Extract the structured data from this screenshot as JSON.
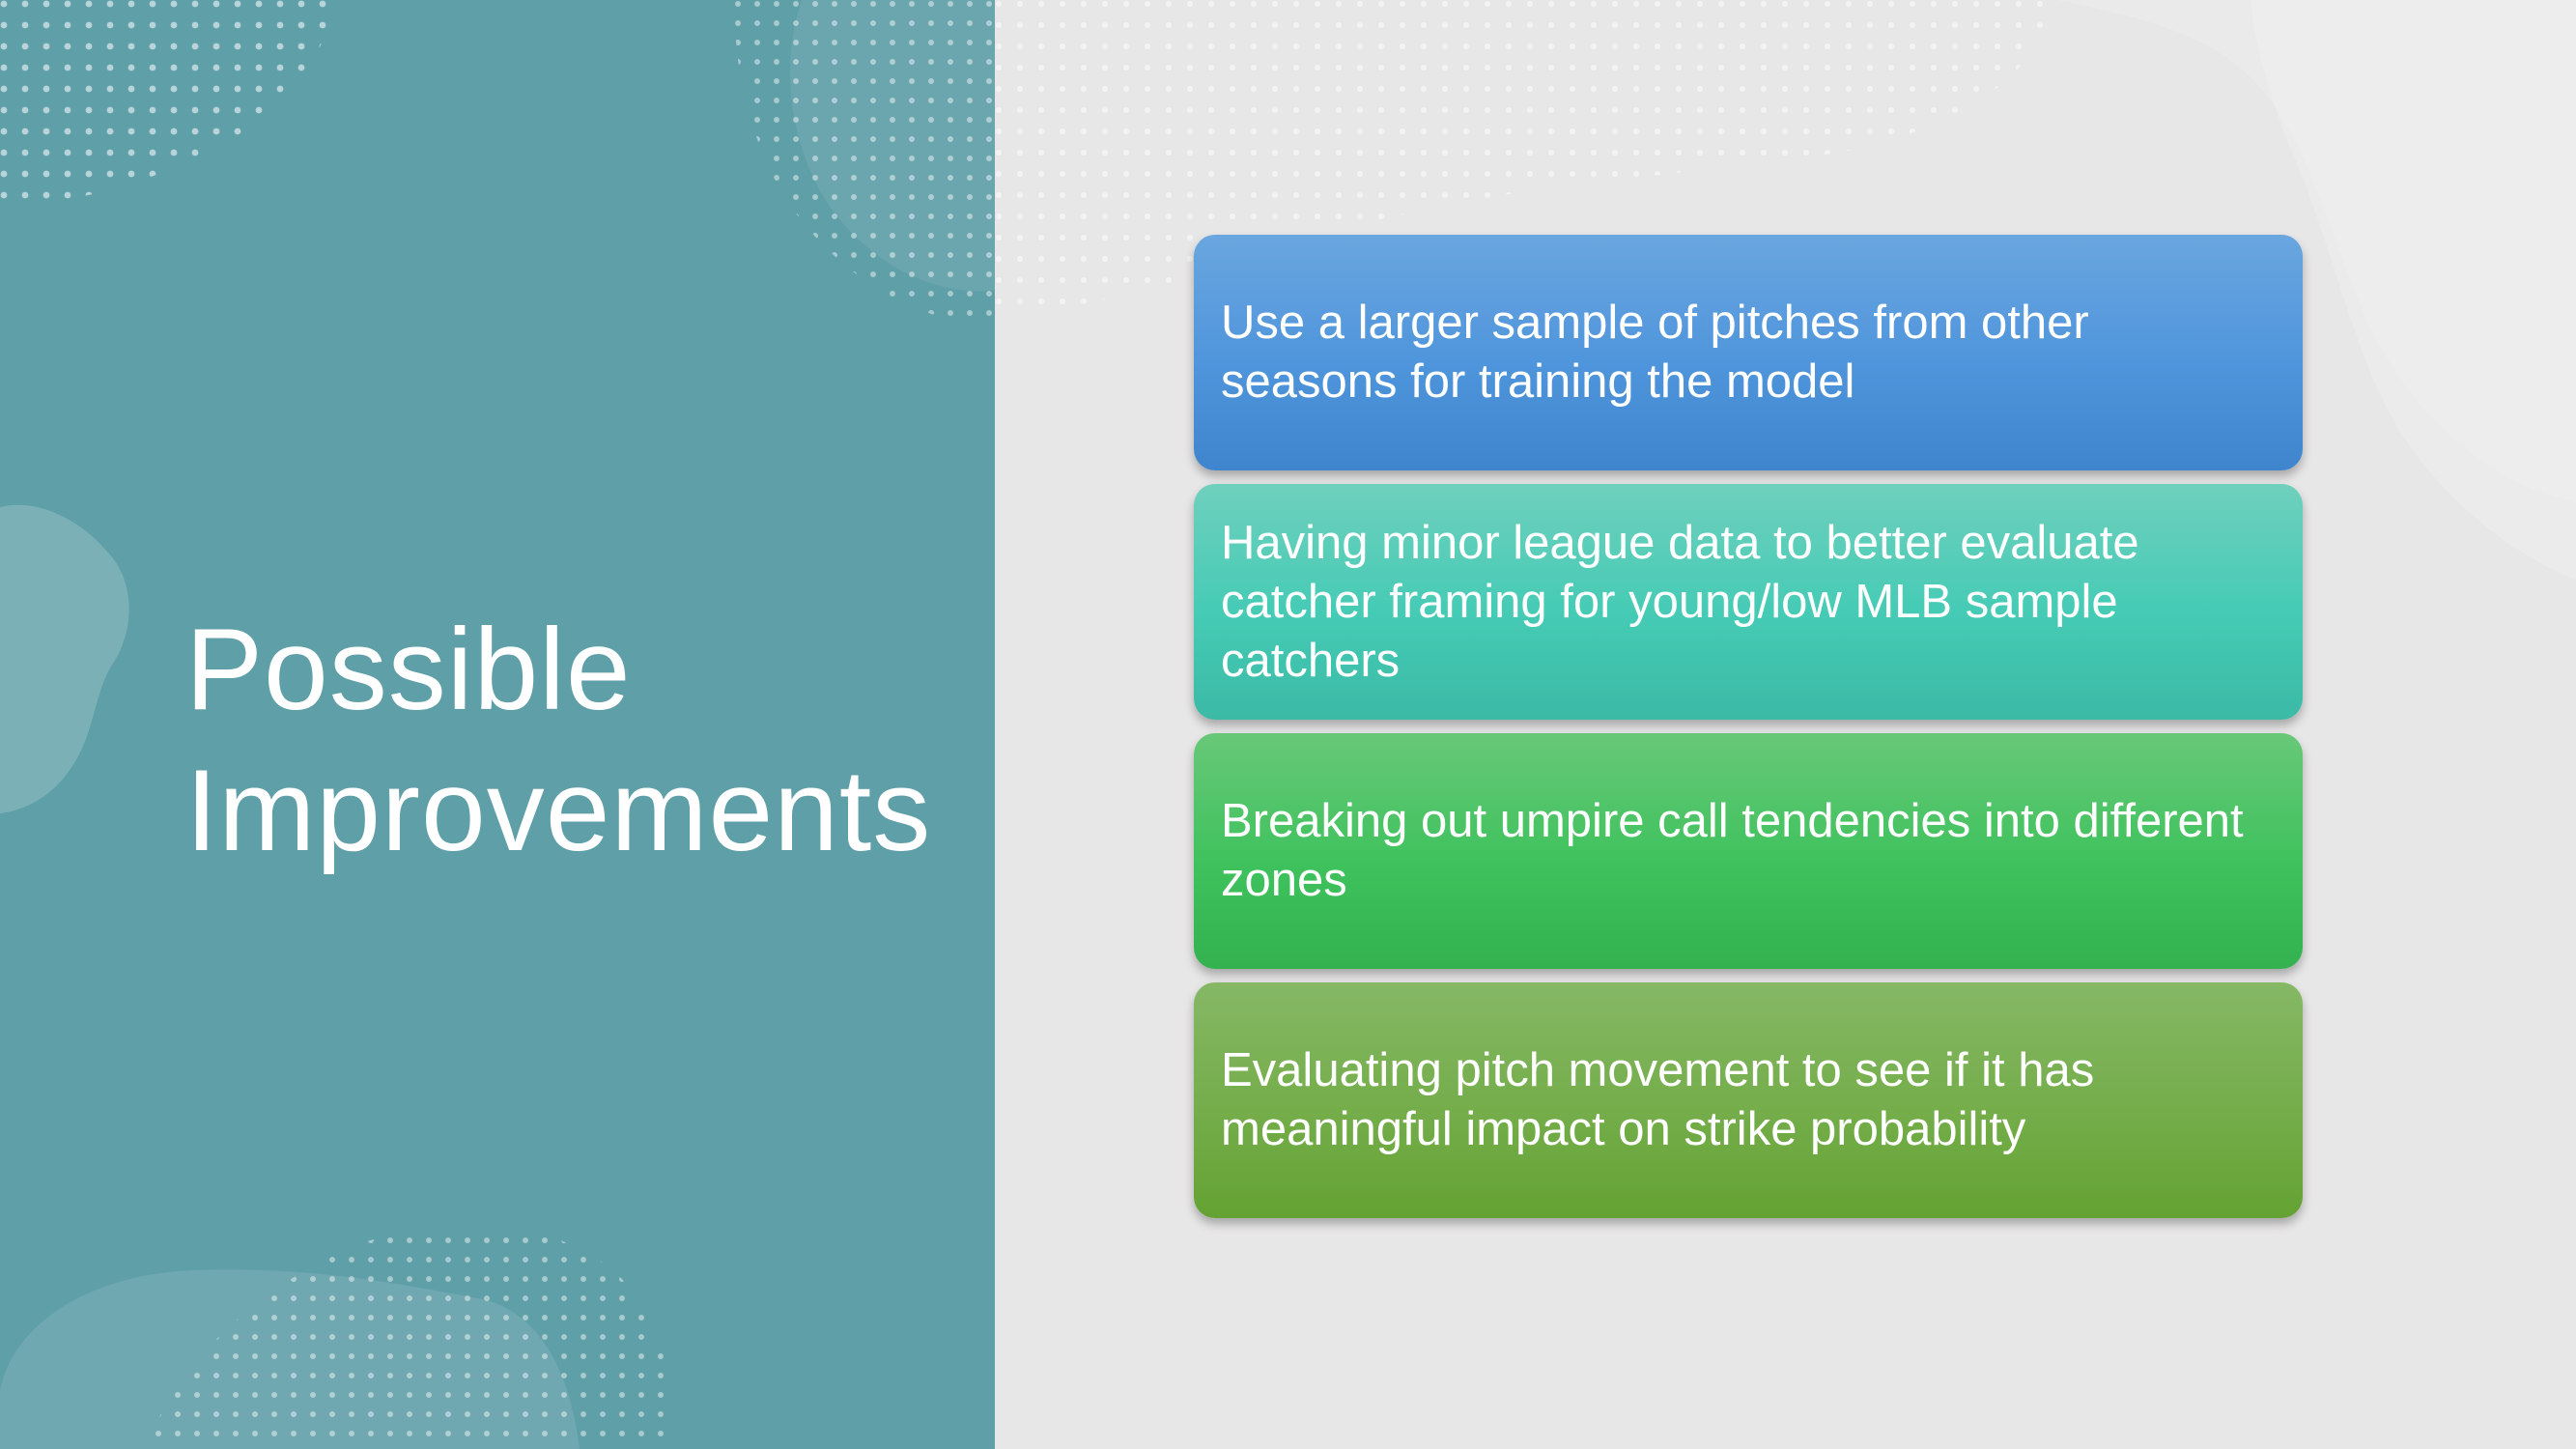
{
  "slide": {
    "title_lines": [
      "Possible",
      "Improvements"
    ],
    "items": [
      {
        "text": "Use a larger sample of pitches from other seasons for training the model"
      },
      {
        "text": "Having minor league data to better evaluate catcher framing for young/low MLB sample catchers"
      },
      {
        "text": "Breaking out umpire call tendencies into different zones"
      },
      {
        "text": "Evaluating pitch movement to see if it has meaningful impact on strike probability"
      }
    ]
  },
  "colors": {
    "left_panel": "#5f9fa8",
    "right_panel": "#e8e7e7",
    "title_text": "#ffffff",
    "item_1": "#4f95dc",
    "item_2": "#45cbb5",
    "item_3": "#3fc25d",
    "item_4": "#74ad4a"
  }
}
